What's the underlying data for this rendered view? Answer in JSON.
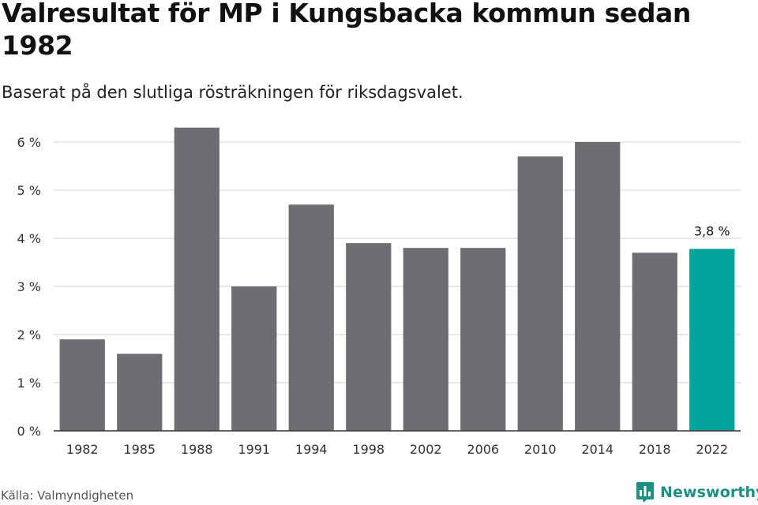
{
  "title": "Valresultat för MP i Kungsbacka kommun sedan 1982",
  "subtitle": "Baserat på den slutliga rösträkningen för riksdagsvalet.",
  "source": "Källa: Valmyndigheten",
  "brand": {
    "name": "Newsworthy",
    "icon": "newsworthy-logo-icon",
    "color": "#1e8f83"
  },
  "colors": {
    "bar": "#6e6d72",
    "highlight": "#00a39a",
    "grid": "#d9d9d9",
    "axis": "#333333"
  },
  "chart_data": {
    "type": "bar",
    "categories": [
      "1982",
      "1985",
      "1988",
      "1991",
      "1994",
      "1998",
      "2002",
      "2006",
      "2010",
      "2014",
      "2018",
      "2022"
    ],
    "values": [
      1.9,
      1.6,
      6.3,
      3.0,
      4.7,
      3.9,
      3.8,
      3.8,
      5.7,
      6.0,
      3.7,
      3.78
    ],
    "highlight_index": 11,
    "value_labels": [
      {
        "index": 11,
        "text": "3,8 %"
      }
    ],
    "ylim": [
      0,
      6
    ],
    "yticks": [
      0,
      1,
      2,
      3,
      4,
      5,
      6
    ],
    "ytick_labels": [
      "0 %",
      "1 %",
      "2 %",
      "3 %",
      "4 %",
      "5 %",
      "6 %"
    ],
    "xlabel": "",
    "ylabel": "",
    "grid": true,
    "legend": "none"
  }
}
